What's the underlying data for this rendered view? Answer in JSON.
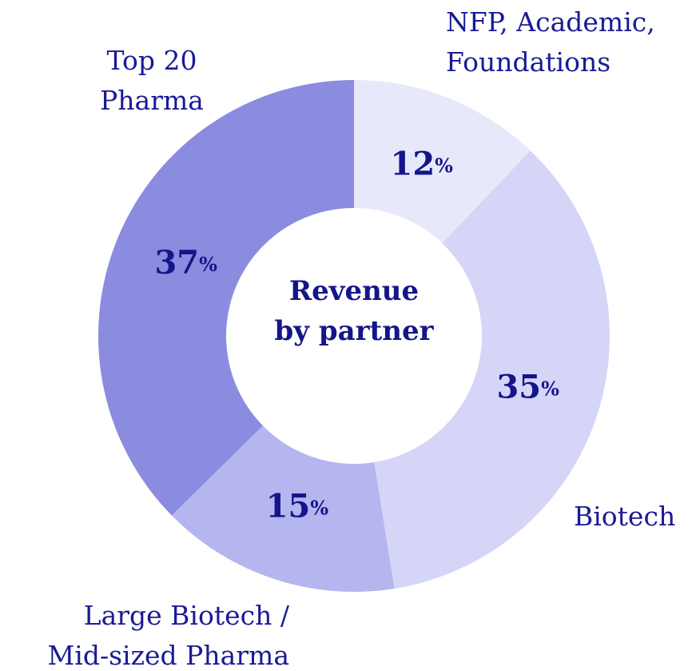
{
  "chart_data": {
    "type": "donut",
    "title": "Revenue\nby partner",
    "categories": [
      "NFP, Academic,\nFoundations",
      "Biotech",
      "Large Biotech /\nMid-sized Pharma",
      "Top 20\nPharma"
    ],
    "values": [
      12,
      35,
      15,
      37
    ],
    "value_labels": [
      "12%",
      "35%",
      "15%",
      "37%"
    ],
    "colors": [
      "#e8e8fb",
      "#d5d5f8",
      "#b5b5ef",
      "#8b8bdf"
    ]
  }
}
